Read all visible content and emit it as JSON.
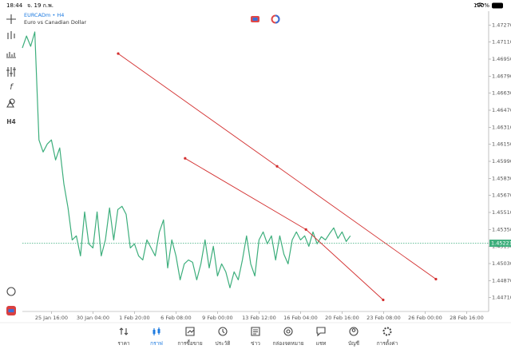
{
  "status_bar": {
    "time": "18:44",
    "date": "จ. 19 ก.พ.",
    "battery": "100%"
  },
  "toolbar": {
    "timeframe": "H4"
  },
  "chart_data": {
    "type": "line",
    "symbol": "EURCADm • H4",
    "description": "Euro vs Canadian Dollar",
    "series": [
      {
        "color": "#3dae7c",
        "values": [
          1.47055,
          1.47167,
          1.4707,
          1.47205,
          1.46191,
          1.46078,
          1.46153,
          1.46191,
          1.46003,
          1.46116,
          1.45778,
          1.45553,
          1.45252,
          1.4529,
          1.45102,
          1.45515,
          1.45215,
          1.45177,
          1.45515,
          1.45102,
          1.45252,
          1.45553,
          1.45252,
          1.45538,
          1.45568,
          1.45492,
          1.45177,
          1.45215,
          1.45102,
          1.45064,
          1.45252,
          1.45177,
          1.45102,
          1.45327,
          1.4544,
          1.44989,
          1.45252,
          1.45102,
          1.44877,
          1.45027,
          1.45064,
          1.45042,
          1.44877,
          1.45027,
          1.45252,
          1.44989,
          1.45192,
          1.44914,
          1.45027,
          1.44952,
          1.44802,
          1.44952,
          1.44877,
          1.45064,
          1.4529,
          1.45027,
          1.44914,
          1.45252,
          1.45327,
          1.45215,
          1.4529,
          1.45064,
          1.4529,
          1.45117,
          1.45027,
          1.45252,
          1.45327,
          1.45252,
          1.4529,
          1.45192,
          1.45327,
          1.45215,
          1.45282,
          1.45252,
          1.45312,
          1.45365,
          1.45267,
          1.45327,
          1.45237,
          1.4529
        ]
      }
    ],
    "current_price": 1.45221,
    "current_price_color": "#3dae7c",
    "trendlines": [
      {
        "color": "#d32f2f",
        "x": [
          23.08,
          61.35,
          99.6
        ],
        "values": [
          1.47002,
          1.45943,
          1.44884
        ]
      },
      {
        "color": "#d32f2f",
        "x": [
          39.2,
          68.3,
          86.9
        ],
        "values": [
          1.46018,
          1.4535,
          1.44689
        ]
      }
    ],
    "xlim": [
      0,
      112.3
    ],
    "xticks": [
      {
        "value": 7,
        "label": "25 Jan 16:00"
      },
      {
        "value": 17,
        "label": "30 Jan 04:00"
      },
      {
        "value": 27,
        "label": "1 Feb 20:00"
      },
      {
        "value": 37,
        "label": "6 Feb 08:00"
      },
      {
        "value": 47,
        "label": "9 Feb 00:00"
      },
      {
        "value": 57,
        "label": "13 Feb 12:00"
      },
      {
        "value": 67,
        "label": "16 Feb 04:00"
      },
      {
        "value": 77,
        "label": "20 Feb 16:00"
      },
      {
        "value": 87,
        "label": "23 Feb 08:00"
      },
      {
        "value": 97,
        "label": "26 Feb 00:00"
      },
      {
        "value": 107,
        "label": "28 Feb 16:00"
      }
    ],
    "ylim": [
      1.4458,
      1.474
    ],
    "yticks": [
      {
        "value": 1.4727,
        "label": "1.47270"
      },
      {
        "value": 1.4711,
        "label": "1.47110"
      },
      {
        "value": 1.4695,
        "label": "1.46950"
      },
      {
        "value": 1.4679,
        "label": "1.46790"
      },
      {
        "value": 1.4663,
        "label": "1.46630"
      },
      {
        "value": 1.4647,
        "label": "1.46470"
      },
      {
        "value": 1.4631,
        "label": "1.46310"
      },
      {
        "value": 1.4615,
        "label": "1.46150"
      },
      {
        "value": 1.4599,
        "label": "1.45990"
      },
      {
        "value": 1.4583,
        "label": "1.45830"
      },
      {
        "value": 1.4567,
        "label": "1.45670"
      },
      {
        "value": 1.4551,
        "label": "1.45510"
      },
      {
        "value": 1.4535,
        "label": "1.45350"
      },
      {
        "value": 1.4519,
        "label": "1.45190"
      },
      {
        "value": 1.4503,
        "label": "1.45030"
      },
      {
        "value": 1.4487,
        "label": "1.44870"
      },
      {
        "value": 1.4471,
        "label": "1.44710"
      }
    ]
  },
  "tabs": [
    {
      "label": "ราคา",
      "active": false
    },
    {
      "label": "กราฟ",
      "active": true
    },
    {
      "label": "การซื้อขาย",
      "active": false
    },
    {
      "label": "ประวัติ",
      "active": false
    },
    {
      "label": "ข่าว",
      "active": false
    },
    {
      "label": "กล่องจดหมาย",
      "active": false
    },
    {
      "label": "แชท",
      "active": false
    },
    {
      "label": "บัญชี",
      "active": false
    },
    {
      "label": "การตั้งค่า",
      "active": false
    }
  ]
}
